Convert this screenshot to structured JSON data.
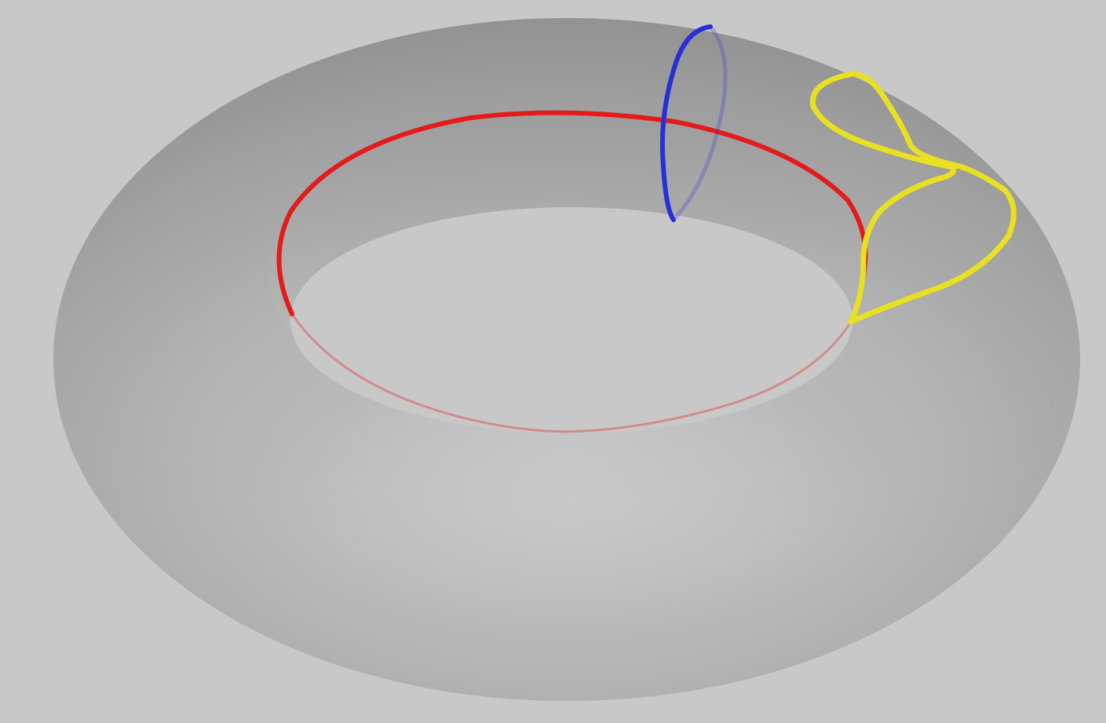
{
  "scene": {
    "background_color": "#c8c8c8",
    "surface": {
      "shape": "torus",
      "color": "#a9a9a9"
    },
    "curves": [
      {
        "name": "longitude-loop",
        "color": "#e41b1b"
      },
      {
        "name": "meridian-loop",
        "color": "#2630d6"
      },
      {
        "name": "contractible-loop",
        "color": "#e8e020"
      }
    ]
  }
}
